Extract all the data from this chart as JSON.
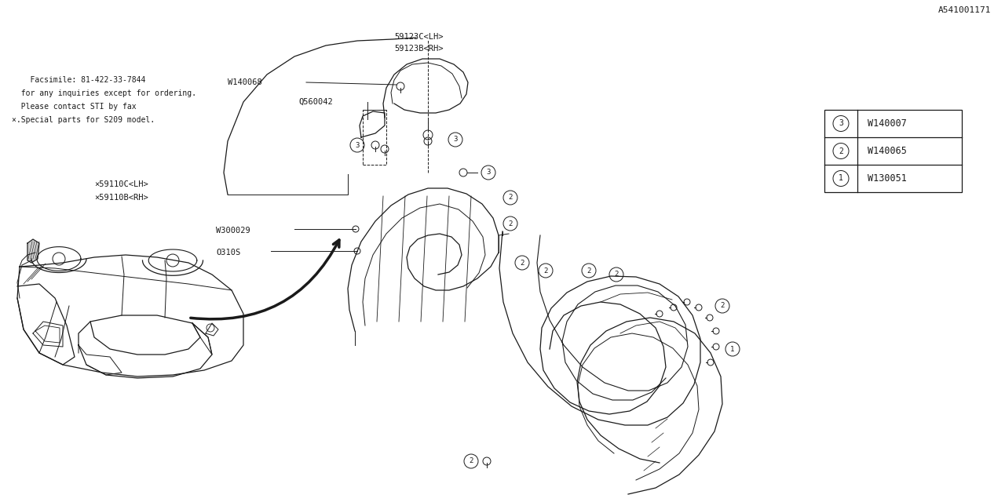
{
  "bg_color": "#ffffff",
  "line_color": "#1a1a1a",
  "legend_items": [
    {
      "num": "1",
      "code": "W130051"
    },
    {
      "num": "2",
      "code": "W140065"
    },
    {
      "num": "3",
      "code": "W140007"
    }
  ],
  "footer_lines": [
    "×.Special parts for S209 model.",
    "  Please contact STI by fax",
    "  for any inquiries except for ordering.",
    "    Facsimile: 81-422-33-7844"
  ],
  "diagram_id": "A541001171",
  "font_size": 7.5,
  "label_fontsize": 7.5,
  "mono_font": "monospace",
  "arrow_lw": 2.5,
  "part_lw": 0.9,
  "fastener_lw": 0.7
}
